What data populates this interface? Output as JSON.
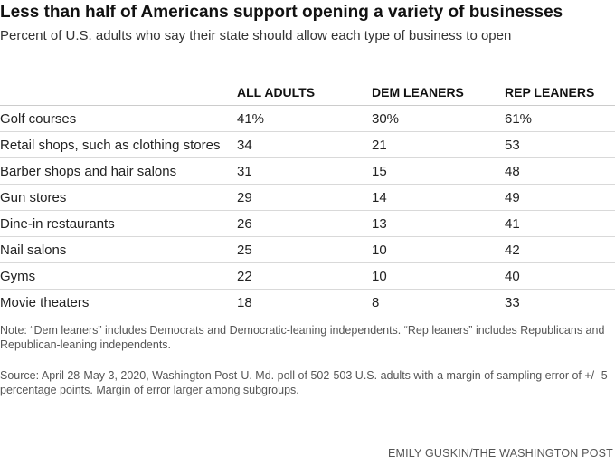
{
  "header": {
    "title": "Less than half of Americans support opening a variety of businesses",
    "subtitle": "Percent of U.S. adults who say their state should allow each type of business to open"
  },
  "chart_data": {
    "type": "table",
    "title": "Less than half of Americans support opening a variety of businesses",
    "subtitle": "Percent of U.S. adults who say their state should allow each type of business to open",
    "columns": [
      "ALL ADULTS",
      "DEM LEANERS",
      "REP LEANERS"
    ],
    "rows": [
      {
        "label": "Golf courses",
        "display": [
          "41%",
          "30%",
          "61%"
        ],
        "values": [
          41,
          30,
          61
        ]
      },
      {
        "label": "Retail shops, such as clothing stores",
        "display": [
          "34",
          "21",
          "53"
        ],
        "values": [
          34,
          21,
          53
        ]
      },
      {
        "label": "Barber shops and hair salons",
        "display": [
          "31",
          "15",
          "48"
        ],
        "values": [
          31,
          15,
          48
        ]
      },
      {
        "label": "Gun stores",
        "display": [
          "29",
          "14",
          "49"
        ],
        "values": [
          29,
          14,
          49
        ]
      },
      {
        "label": "Dine-in restaurants",
        "display": [
          "26",
          "13",
          "41"
        ],
        "values": [
          26,
          13,
          41
        ]
      },
      {
        "label": "Nail salons",
        "display": [
          "25",
          "10",
          "42"
        ],
        "values": [
          25,
          10,
          42
        ]
      },
      {
        "label": "Gyms",
        "display": [
          "22",
          "10",
          "40"
        ],
        "values": [
          22,
          10,
          40
        ]
      },
      {
        "label": "Movie theaters",
        "display": [
          "18",
          "8",
          "33"
        ],
        "values": [
          18,
          8,
          33
        ]
      }
    ]
  },
  "footer": {
    "note": "Note: “Dem leaners” includes Democrats and Democratic-leaning independents. “Rep leaners” includes Republicans and Republican-leaning independents.",
    "source": "Source: April 28-May 3, 2020, Washington Post-U. Md. poll of 502-503 U.S. adults with a margin of sampling error of +/- 5 percentage points. Margin of error larger among subgroups.",
    "credit": "EMILY GUSKIN/THE WASHINGTON POST"
  }
}
